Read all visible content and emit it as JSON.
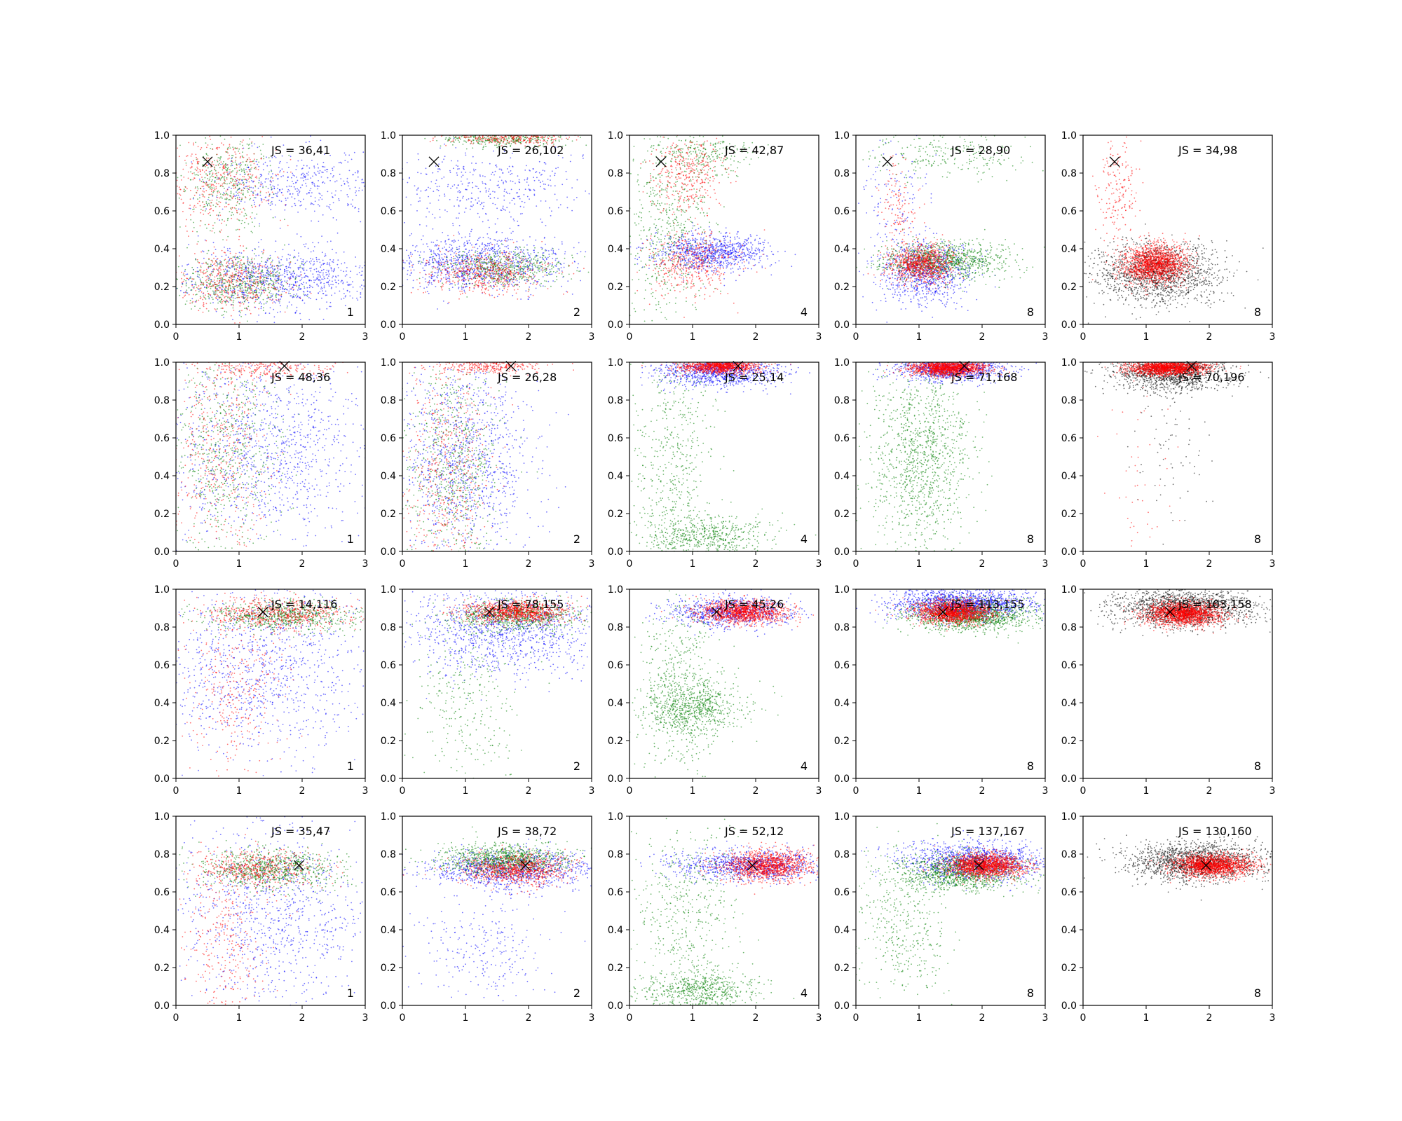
{
  "chart_data": {
    "type": "scatter",
    "layout": "grid 4 rows x 5 columns",
    "xlim": [
      0,
      3
    ],
    "ylim": [
      0,
      1
    ],
    "xticks": [
      "0",
      "1",
      "2",
      "3"
    ],
    "yticks": [
      "0.0",
      "0.2",
      "0.4",
      "0.6",
      "0.8",
      "1.0"
    ],
    "colors": {
      "blue": "#0000ff",
      "green": "#008000",
      "red": "#ff0000",
      "black": "#000000",
      "marker": "#000000"
    },
    "column_labels": [
      "1",
      "2",
      "4",
      "8",
      "8"
    ],
    "rows": [
      {
        "marker": {
          "x": 0.5,
          "y": 0.86
        },
        "panels": [
          {
            "js": "JS = 36,41",
            "corner": "1",
            "clusters": [
              {
                "color": "blue",
                "n": 900,
                "cx": 1.6,
                "cy": 0.24,
                "sx": 0.75,
                "sy": 0.08
              },
              {
                "color": "blue",
                "n": 450,
                "cx": 1.9,
                "cy": 0.74,
                "sx": 0.7,
                "sy": 0.09
              },
              {
                "color": "green",
                "n": 550,
                "cx": 1.0,
                "cy": 0.22,
                "sx": 0.45,
                "sy": 0.07
              },
              {
                "color": "green",
                "n": 400,
                "cx": 0.8,
                "cy": 0.75,
                "sx": 0.35,
                "sy": 0.12
              },
              {
                "color": "red",
                "n": 450,
                "cx": 0.9,
                "cy": 0.23,
                "sx": 0.4,
                "sy": 0.08
              },
              {
                "color": "red",
                "n": 400,
                "cx": 0.7,
                "cy": 0.76,
                "sx": 0.4,
                "sy": 0.12
              }
            ]
          },
          {
            "js": "JS = 26,102",
            "corner": "2",
            "clusters": [
              {
                "color": "blue",
                "n": 1000,
                "cx": 1.2,
                "cy": 0.32,
                "sx": 0.7,
                "sy": 0.07
              },
              {
                "color": "blue",
                "n": 400,
                "cx": 1.3,
                "cy": 0.72,
                "sx": 0.8,
                "sy": 0.1
              },
              {
                "color": "green",
                "n": 550,
                "cx": 1.6,
                "cy": 0.3,
                "sx": 0.5,
                "sy": 0.05
              },
              {
                "color": "green",
                "n": 350,
                "cx": 1.6,
                "cy": 0.98,
                "sx": 0.5,
                "sy": 0.02
              },
              {
                "color": "red",
                "n": 500,
                "cx": 1.3,
                "cy": 0.27,
                "sx": 0.45,
                "sy": 0.06
              },
              {
                "color": "red",
                "n": 350,
                "cx": 1.7,
                "cy": 0.99,
                "sx": 0.45,
                "sy": 0.02
              }
            ]
          },
          {
            "js": "JS = 42,87",
            "corner": "4",
            "clusters": [
              {
                "color": "blue",
                "n": 900,
                "cx": 1.3,
                "cy": 0.38,
                "sx": 0.45,
                "sy": 0.05
              },
              {
                "color": "green",
                "n": 550,
                "cx": 0.6,
                "cy": 0.5,
                "sx": 0.35,
                "sy": 0.25
              },
              {
                "color": "green",
                "n": 250,
                "cx": 1.2,
                "cy": 0.92,
                "sx": 0.4,
                "sy": 0.06
              },
              {
                "color": "red",
                "n": 450,
                "cx": 1.0,
                "cy": 0.33,
                "sx": 0.35,
                "sy": 0.08
              },
              {
                "color": "red",
                "n": 350,
                "cx": 0.95,
                "cy": 0.8,
                "sx": 0.3,
                "sy": 0.1
              }
            ]
          },
          {
            "js": "JS = 28,90",
            "corner": "8",
            "clusters": [
              {
                "color": "blue",
                "n": 900,
                "cx": 1.1,
                "cy": 0.28,
                "sx": 0.35,
                "sy": 0.08
              },
              {
                "color": "blue",
                "n": 150,
                "cx": 0.6,
                "cy": 0.6,
                "sx": 0.3,
                "sy": 0.2
              },
              {
                "color": "green",
                "n": 1000,
                "cx": 1.4,
                "cy": 0.34,
                "sx": 0.5,
                "sy": 0.05
              },
              {
                "color": "green",
                "n": 250,
                "cx": 1.5,
                "cy": 0.9,
                "sx": 0.6,
                "sy": 0.06
              },
              {
                "color": "red",
                "n": 900,
                "cx": 1.05,
                "cy": 0.32,
                "sx": 0.25,
                "sy": 0.05
              },
              {
                "color": "red",
                "n": 120,
                "cx": 0.65,
                "cy": 0.6,
                "sx": 0.15,
                "sy": 0.12
              }
            ]
          },
          {
            "js": "JS = 34,98",
            "corner": "8",
            "clusters": [
              {
                "color": "black",
                "n": 1500,
                "cx": 1.2,
                "cy": 0.27,
                "sx": 0.5,
                "sy": 0.08
              },
              {
                "color": "red",
                "n": 1600,
                "cx": 1.15,
                "cy": 0.32,
                "sx": 0.25,
                "sy": 0.05
              },
              {
                "color": "red",
                "n": 200,
                "cx": 0.55,
                "cy": 0.72,
                "sx": 0.15,
                "sy": 0.16
              }
            ]
          }
        ]
      },
      {
        "marker": {
          "x": 1.72,
          "y": 0.98
        },
        "panels": [
          {
            "js": "JS = 48,36",
            "corner": "1",
            "clusters": [
              {
                "color": "blue",
                "n": 1100,
                "cx": 1.5,
                "cy": 0.55,
                "sx": 0.8,
                "sy": 0.27
              },
              {
                "color": "green",
                "n": 650,
                "cx": 0.8,
                "cy": 0.55,
                "sx": 0.4,
                "sy": 0.3
              },
              {
                "color": "red",
                "n": 450,
                "cx": 0.7,
                "cy": 0.5,
                "sx": 0.4,
                "sy": 0.3
              },
              {
                "color": "red",
                "n": 250,
                "cx": 1.4,
                "cy": 0.97,
                "sx": 0.5,
                "sy": 0.03
              }
            ]
          },
          {
            "js": "JS = 26,28",
            "corner": "2",
            "clusters": [
              {
                "color": "blue",
                "n": 1100,
                "cx": 1.0,
                "cy": 0.5,
                "sx": 0.55,
                "sy": 0.28
              },
              {
                "color": "green",
                "n": 700,
                "cx": 0.8,
                "cy": 0.45,
                "sx": 0.35,
                "sy": 0.28
              },
              {
                "color": "red",
                "n": 500,
                "cx": 0.7,
                "cy": 0.4,
                "sx": 0.35,
                "sy": 0.3
              },
              {
                "color": "red",
                "n": 300,
                "cx": 1.4,
                "cy": 0.98,
                "sx": 0.4,
                "sy": 0.02
              }
            ]
          },
          {
            "js": "JS = 25,14",
            "corner": "4",
            "clusters": [
              {
                "color": "blue",
                "n": 1000,
                "cx": 1.4,
                "cy": 0.95,
                "sx": 0.5,
                "sy": 0.04
              },
              {
                "color": "green",
                "n": 600,
                "cx": 1.2,
                "cy": 0.08,
                "sx": 0.5,
                "sy": 0.06
              },
              {
                "color": "green",
                "n": 500,
                "cx": 0.7,
                "cy": 0.5,
                "sx": 0.3,
                "sy": 0.3
              },
              {
                "color": "red",
                "n": 1200,
                "cx": 1.4,
                "cy": 0.98,
                "sx": 0.3,
                "sy": 0.02
              }
            ]
          },
          {
            "js": "JS = 71,168",
            "corner": "8",
            "clusters": [
              {
                "color": "blue",
                "n": 900,
                "cx": 1.5,
                "cy": 0.96,
                "sx": 0.45,
                "sy": 0.03
              },
              {
                "color": "green",
                "n": 1200,
                "cx": 1.0,
                "cy": 0.5,
                "sx": 0.4,
                "sy": 0.27
              },
              {
                "color": "red",
                "n": 1500,
                "cx": 1.45,
                "cy": 0.97,
                "sx": 0.3,
                "sy": 0.02
              }
            ]
          },
          {
            "js": "JS = 70,196",
            "corner": "8",
            "clusters": [
              {
                "color": "black",
                "n": 1400,
                "cx": 1.4,
                "cy": 0.95,
                "sx": 0.45,
                "sy": 0.05
              },
              {
                "color": "black",
                "n": 80,
                "cx": 1.4,
                "cy": 0.6,
                "sx": 0.3,
                "sy": 0.2
              },
              {
                "color": "red",
                "n": 1600,
                "cx": 1.35,
                "cy": 0.97,
                "sx": 0.3,
                "sy": 0.02
              },
              {
                "color": "red",
                "n": 50,
                "cx": 0.9,
                "cy": 0.4,
                "sx": 0.3,
                "sy": 0.25
              }
            ]
          }
        ]
      },
      {
        "marker": {
          "x": 1.38,
          "y": 0.88
        },
        "panels": [
          {
            "js": "JS = 14,116",
            "corner": "1",
            "clusters": [
              {
                "color": "blue",
                "n": 1100,
                "cx": 1.4,
                "cy": 0.6,
                "sx": 0.8,
                "sy": 0.25
              },
              {
                "color": "green",
                "n": 700,
                "cx": 1.7,
                "cy": 0.86,
                "sx": 0.6,
                "sy": 0.04
              },
              {
                "color": "red",
                "n": 600,
                "cx": 1.6,
                "cy": 0.87,
                "sx": 0.6,
                "sy": 0.04
              },
              {
                "color": "red",
                "n": 300,
                "cx": 1.0,
                "cy": 0.45,
                "sx": 0.4,
                "sy": 0.2
              }
            ]
          },
          {
            "js": "JS = 78,155",
            "corner": "2",
            "clusters": [
              {
                "color": "blue",
                "n": 1200,
                "cx": 1.6,
                "cy": 0.78,
                "sx": 0.75,
                "sy": 0.12
              },
              {
                "color": "green",
                "n": 800,
                "cx": 1.8,
                "cy": 0.86,
                "sx": 0.5,
                "sy": 0.04
              },
              {
                "color": "green",
                "n": 300,
                "cx": 1.0,
                "cy": 0.4,
                "sx": 0.4,
                "sy": 0.22
              },
              {
                "color": "red",
                "n": 1000,
                "cx": 1.8,
                "cy": 0.88,
                "sx": 0.4,
                "sy": 0.03
              }
            ]
          },
          {
            "js": "JS = 45,26",
            "corner": "4",
            "clusters": [
              {
                "color": "blue",
                "n": 900,
                "cx": 1.6,
                "cy": 0.88,
                "sx": 0.5,
                "sy": 0.04
              },
              {
                "color": "green",
                "n": 700,
                "cx": 1.0,
                "cy": 0.38,
                "sx": 0.4,
                "sy": 0.07
              },
              {
                "color": "green",
                "n": 500,
                "cx": 0.8,
                "cy": 0.5,
                "sx": 0.3,
                "sy": 0.25
              },
              {
                "color": "red",
                "n": 1300,
                "cx": 1.8,
                "cy": 0.88,
                "sx": 0.35,
                "sy": 0.03
              }
            ]
          },
          {
            "js": "JS = 113,155",
            "corner": "8",
            "clusters": [
              {
                "color": "blue",
                "n": 1600,
                "cx": 1.7,
                "cy": 0.92,
                "sx": 0.55,
                "sy": 0.04
              },
              {
                "color": "green",
                "n": 1300,
                "cx": 1.8,
                "cy": 0.86,
                "sx": 0.5,
                "sy": 0.04
              },
              {
                "color": "red",
                "n": 1600,
                "cx": 1.55,
                "cy": 0.88,
                "sx": 0.3,
                "sy": 0.03
              }
            ]
          },
          {
            "js": "JS = 103,158",
            "corner": "8",
            "clusters": [
              {
                "color": "black",
                "n": 1600,
                "cx": 1.6,
                "cy": 0.9,
                "sx": 0.55,
                "sy": 0.05
              },
              {
                "color": "red",
                "n": 1700,
                "cx": 1.6,
                "cy": 0.87,
                "sx": 0.3,
                "sy": 0.03
              }
            ]
          }
        ]
      },
      {
        "marker": {
          "x": 1.95,
          "y": 0.74
        },
        "panels": [
          {
            "js": "JS = 35,47",
            "corner": "1",
            "clusters": [
              {
                "color": "blue",
                "n": 1000,
                "cx": 1.5,
                "cy": 0.5,
                "sx": 0.75,
                "sy": 0.25
              },
              {
                "color": "green",
                "n": 800,
                "cx": 1.5,
                "cy": 0.72,
                "sx": 0.55,
                "sy": 0.05
              },
              {
                "color": "red",
                "n": 500,
                "cx": 1.3,
                "cy": 0.72,
                "sx": 0.5,
                "sy": 0.05
              },
              {
                "color": "red",
                "n": 300,
                "cx": 0.8,
                "cy": 0.35,
                "sx": 0.35,
                "sy": 0.22
              }
            ]
          },
          {
            "js": "JS = 38,72",
            "corner": "2",
            "clusters": [
              {
                "color": "blue",
                "n": 1100,
                "cx": 1.7,
                "cy": 0.72,
                "sx": 0.7,
                "sy": 0.05
              },
              {
                "color": "blue",
                "n": 250,
                "cx": 1.3,
                "cy": 0.3,
                "sx": 0.6,
                "sy": 0.15
              },
              {
                "color": "green",
                "n": 1000,
                "cx": 1.6,
                "cy": 0.77,
                "sx": 0.5,
                "sy": 0.04
              },
              {
                "color": "red",
                "n": 900,
                "cx": 1.8,
                "cy": 0.72,
                "sx": 0.4,
                "sy": 0.04
              }
            ]
          },
          {
            "js": "JS = 52,12",
            "corner": "4",
            "clusters": [
              {
                "color": "blue",
                "n": 1000,
                "cx": 1.9,
                "cy": 0.74,
                "sx": 0.6,
                "sy": 0.04
              },
              {
                "color": "green",
                "n": 600,
                "cx": 1.1,
                "cy": 0.08,
                "sx": 0.45,
                "sy": 0.05
              },
              {
                "color": "green",
                "n": 500,
                "cx": 0.9,
                "cy": 0.45,
                "sx": 0.4,
                "sy": 0.25
              },
              {
                "color": "red",
                "n": 1300,
                "cx": 2.2,
                "cy": 0.74,
                "sx": 0.35,
                "sy": 0.04
              }
            ]
          },
          {
            "js": "JS = 137,167",
            "corner": "8",
            "clusters": [
              {
                "color": "blue",
                "n": 1300,
                "cx": 1.9,
                "cy": 0.76,
                "sx": 0.55,
                "sy": 0.05
              },
              {
                "color": "green",
                "n": 1100,
                "cx": 1.7,
                "cy": 0.7,
                "sx": 0.5,
                "sy": 0.05
              },
              {
                "color": "green",
                "n": 400,
                "cx": 0.8,
                "cy": 0.4,
                "sx": 0.35,
                "sy": 0.22
              },
              {
                "color": "red",
                "n": 1600,
                "cx": 2.05,
                "cy": 0.74,
                "sx": 0.3,
                "sy": 0.03
              }
            ]
          },
          {
            "js": "JS = 130,160",
            "corner": "8",
            "clusters": [
              {
                "color": "black",
                "n": 1600,
                "cx": 1.8,
                "cy": 0.76,
                "sx": 0.55,
                "sy": 0.05
              },
              {
                "color": "red",
                "n": 1700,
                "cx": 2.05,
                "cy": 0.74,
                "sx": 0.3,
                "sy": 0.03
              }
            ]
          }
        ]
      }
    ]
  }
}
